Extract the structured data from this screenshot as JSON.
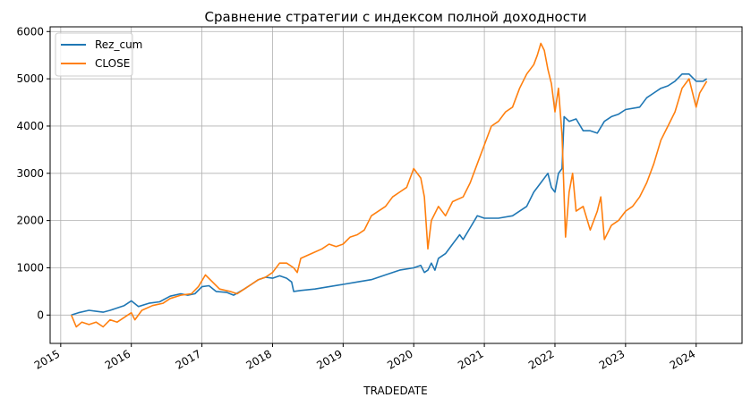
{
  "chart_data": {
    "type": "line",
    "title": "Сравнение стратегии с индексом полной доходности",
    "xlabel": "TRADEDATE",
    "ylabel": "",
    "x_ticks": [
      "2015",
      "2016",
      "2017",
      "2018",
      "2019",
      "2020",
      "2021",
      "2022",
      "2023",
      "2024"
    ],
    "y_ticks": [
      "0",
      "1000",
      "2000",
      "3000",
      "4000",
      "5000",
      "6000"
    ],
    "xlim": [
      2014.85,
      2024.65
    ],
    "ylim": [
      -600,
      6100
    ],
    "grid": true,
    "legend_position": "top-left",
    "series": [
      {
        "name": "Rez_cum",
        "color": "#1f77b4",
        "points": [
          [
            2015.15,
            0
          ],
          [
            2015.25,
            50
          ],
          [
            2015.4,
            100
          ],
          [
            2015.5,
            80
          ],
          [
            2015.6,
            60
          ],
          [
            2015.7,
            100
          ],
          [
            2015.8,
            150
          ],
          [
            2015.9,
            200
          ],
          [
            2016.0,
            300
          ],
          [
            2016.1,
            180
          ],
          [
            2016.25,
            250
          ],
          [
            2016.4,
            280
          ],
          [
            2016.55,
            400
          ],
          [
            2016.7,
            450
          ],
          [
            2016.8,
            420
          ],
          [
            2016.9,
            450
          ],
          [
            2017.0,
            600
          ],
          [
            2017.1,
            620
          ],
          [
            2017.2,
            500
          ],
          [
            2017.35,
            480
          ],
          [
            2017.45,
            420
          ],
          [
            2017.6,
            550
          ],
          [
            2017.7,
            650
          ],
          [
            2017.8,
            750
          ],
          [
            2017.9,
            800
          ],
          [
            2018.0,
            780
          ],
          [
            2018.1,
            830
          ],
          [
            2018.2,
            780
          ],
          [
            2018.27,
            700
          ],
          [
            2018.3,
            500
          ],
          [
            2018.4,
            520
          ],
          [
            2018.6,
            550
          ],
          [
            2018.8,
            600
          ],
          [
            2019.0,
            650
          ],
          [
            2019.2,
            700
          ],
          [
            2019.4,
            750
          ],
          [
            2019.6,
            850
          ],
          [
            2019.8,
            950
          ],
          [
            2020.0,
            1000
          ],
          [
            2020.1,
            1050
          ],
          [
            2020.15,
            900
          ],
          [
            2020.2,
            950
          ],
          [
            2020.25,
            1100
          ],
          [
            2020.3,
            950
          ],
          [
            2020.35,
            1200
          ],
          [
            2020.45,
            1300
          ],
          [
            2020.55,
            1500
          ],
          [
            2020.65,
            1700
          ],
          [
            2020.7,
            1600
          ],
          [
            2020.8,
            1850
          ],
          [
            2020.9,
            2100
          ],
          [
            2021.0,
            2050
          ],
          [
            2021.2,
            2050
          ],
          [
            2021.4,
            2100
          ],
          [
            2021.5,
            2200
          ],
          [
            2021.6,
            2300
          ],
          [
            2021.7,
            2600
          ],
          [
            2021.8,
            2800
          ],
          [
            2021.9,
            3000
          ],
          [
            2021.95,
            2700
          ],
          [
            2022.0,
            2600
          ],
          [
            2022.05,
            3000
          ],
          [
            2022.1,
            3100
          ],
          [
            2022.13,
            4200
          ],
          [
            2022.2,
            4100
          ],
          [
            2022.3,
            4150
          ],
          [
            2022.4,
            3900
          ],
          [
            2022.5,
            3900
          ],
          [
            2022.6,
            3850
          ],
          [
            2022.7,
            4100
          ],
          [
            2022.8,
            4200
          ],
          [
            2022.9,
            4250
          ],
          [
            2023.0,
            4350
          ],
          [
            2023.2,
            4400
          ],
          [
            2023.3,
            4600
          ],
          [
            2023.4,
            4700
          ],
          [
            2023.5,
            4800
          ],
          [
            2023.6,
            4850
          ],
          [
            2023.7,
            4950
          ],
          [
            2023.8,
            5100
          ],
          [
            2023.9,
            5100
          ],
          [
            2024.0,
            4950
          ],
          [
            2024.1,
            4950
          ],
          [
            2024.15,
            5000
          ]
        ]
      },
      {
        "name": "CLOSE",
        "color": "#ff7f0e",
        "points": [
          [
            2015.15,
            0
          ],
          [
            2015.22,
            -250
          ],
          [
            2015.3,
            -150
          ],
          [
            2015.4,
            -200
          ],
          [
            2015.5,
            -150
          ],
          [
            2015.6,
            -250
          ],
          [
            2015.7,
            -100
          ],
          [
            2015.8,
            -150
          ],
          [
            2015.9,
            -50
          ],
          [
            2016.0,
            50
          ],
          [
            2016.05,
            -100
          ],
          [
            2016.15,
            100
          ],
          [
            2016.3,
            200
          ],
          [
            2016.45,
            250
          ],
          [
            2016.55,
            350
          ],
          [
            2016.7,
            420
          ],
          [
            2016.85,
            450
          ],
          [
            2016.95,
            600
          ],
          [
            2017.05,
            850
          ],
          [
            2017.15,
            700
          ],
          [
            2017.25,
            550
          ],
          [
            2017.4,
            500
          ],
          [
            2017.5,
            450
          ],
          [
            2017.6,
            550
          ],
          [
            2017.7,
            650
          ],
          [
            2017.8,
            750
          ],
          [
            2017.9,
            800
          ],
          [
            2018.0,
            900
          ],
          [
            2018.1,
            1100
          ],
          [
            2018.2,
            1100
          ],
          [
            2018.3,
            1000
          ],
          [
            2018.35,
            900
          ],
          [
            2018.4,
            1200
          ],
          [
            2018.55,
            1300
          ],
          [
            2018.7,
            1400
          ],
          [
            2018.8,
            1500
          ],
          [
            2018.9,
            1450
          ],
          [
            2019.0,
            1500
          ],
          [
            2019.1,
            1650
          ],
          [
            2019.2,
            1700
          ],
          [
            2019.3,
            1800
          ],
          [
            2019.4,
            2100
          ],
          [
            2019.5,
            2200
          ],
          [
            2019.6,
            2300
          ],
          [
            2019.7,
            2500
          ],
          [
            2019.8,
            2600
          ],
          [
            2019.9,
            2700
          ],
          [
            2020.0,
            3100
          ],
          [
            2020.1,
            2900
          ],
          [
            2020.15,
            2500
          ],
          [
            2020.2,
            1400
          ],
          [
            2020.25,
            2000
          ],
          [
            2020.35,
            2300
          ],
          [
            2020.45,
            2100
          ],
          [
            2020.55,
            2400
          ],
          [
            2020.7,
            2500
          ],
          [
            2020.8,
            2800
          ],
          [
            2020.9,
            3200
          ],
          [
            2021.0,
            3600
          ],
          [
            2021.1,
            4000
          ],
          [
            2021.2,
            4100
          ],
          [
            2021.3,
            4300
          ],
          [
            2021.4,
            4400
          ],
          [
            2021.5,
            4800
          ],
          [
            2021.6,
            5100
          ],
          [
            2021.7,
            5300
          ],
          [
            2021.75,
            5500
          ],
          [
            2021.8,
            5750
          ],
          [
            2021.85,
            5600
          ],
          [
            2021.9,
            5200
          ],
          [
            2021.95,
            4900
          ],
          [
            2022.0,
            4300
          ],
          [
            2022.05,
            4800
          ],
          [
            2022.1,
            3800
          ],
          [
            2022.15,
            1650
          ],
          [
            2022.2,
            2600
          ],
          [
            2022.25,
            3000
          ],
          [
            2022.3,
            2200
          ],
          [
            2022.4,
            2300
          ],
          [
            2022.5,
            1800
          ],
          [
            2022.6,
            2200
          ],
          [
            2022.65,
            2500
          ],
          [
            2022.7,
            1600
          ],
          [
            2022.8,
            1900
          ],
          [
            2022.9,
            2000
          ],
          [
            2023.0,
            2200
          ],
          [
            2023.1,
            2300
          ],
          [
            2023.2,
            2500
          ],
          [
            2023.3,
            2800
          ],
          [
            2023.4,
            3200
          ],
          [
            2023.5,
            3700
          ],
          [
            2023.6,
            4000
          ],
          [
            2023.7,
            4300
          ],
          [
            2023.8,
            4800
          ],
          [
            2023.9,
            5000
          ],
          [
            2024.0,
            4400
          ],
          [
            2024.05,
            4700
          ],
          [
            2024.15,
            4950
          ]
        ]
      }
    ]
  }
}
